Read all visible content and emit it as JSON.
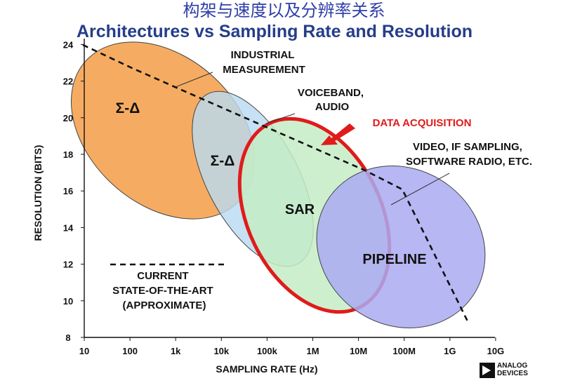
{
  "header": {
    "title_cn": "构架与速度以及分辨率关系",
    "title_en": "Architectures vs Sampling Rate and Resolution"
  },
  "axes": {
    "xlabel": "SAMPLING RATE (Hz)",
    "ylabel": "RESOLUTION (BITS)",
    "x_ticks": [
      "10",
      "100",
      "1k",
      "10k",
      "100k",
      "1M",
      "10M",
      "100M",
      "1G",
      "10G"
    ],
    "y_ticks": [
      "8",
      "10",
      "12",
      "14",
      "16",
      "18",
      "20",
      "22",
      "24"
    ]
  },
  "regions": [
    {
      "id": "sigma-delta-industrial",
      "label": "Σ-Δ",
      "color": "#f5ac62"
    },
    {
      "id": "sigma-delta-voiceband",
      "label": "Σ-Δ",
      "color": "#b9dbf0"
    },
    {
      "id": "sar",
      "label": "SAR",
      "color": "#c4ecc5"
    },
    {
      "id": "pipeline",
      "label": "PIPELINE",
      "color": "#aaaaf2"
    }
  ],
  "annotations": {
    "industrial": [
      "INDUSTRIAL",
      "MEASUREMENT"
    ],
    "voiceband": [
      "VOICEBAND,",
      "AUDIO"
    ],
    "data_acquisition": "DATA ACQUISITION",
    "video": [
      "VIDEO, IF SAMPLING,",
      "SOFTWARE RADIO, ETC."
    ]
  },
  "legend": {
    "lines": [
      "CURRENT",
      "STATE-OF-THE-ART",
      "(APPROXIMATE)"
    ]
  },
  "logo": {
    "lines": [
      "ANALOG",
      "DEVICES"
    ]
  },
  "colors": {
    "title_cn": "#2f3ea8",
    "title_en": "#253d8a",
    "highlight": "#e01b1b"
  }
}
